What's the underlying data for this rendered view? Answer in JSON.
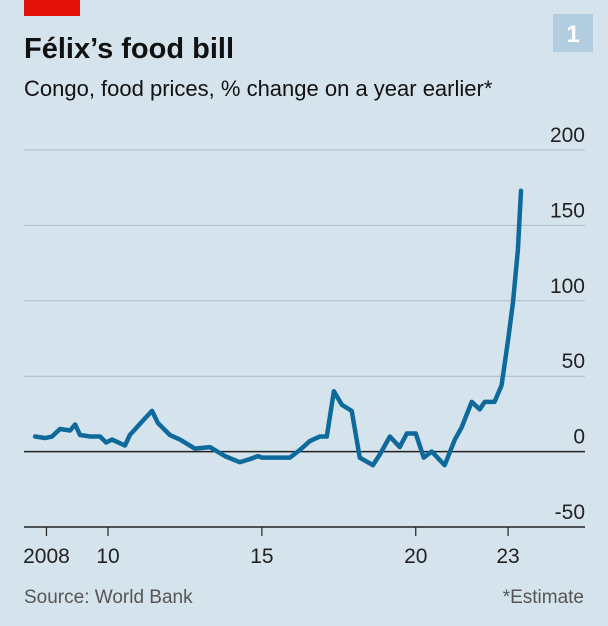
{
  "chart_data": {
    "type": "line",
    "title": "Félix’s food bill",
    "subtitle": "Congo, food prices, % change on a year earlier*",
    "badge": "1",
    "source": "Source: World Bank",
    "note": "*Estimate",
    "x": [
      2007.63,
      2007.95,
      2008.18,
      2008.44,
      2008.77,
      2008.93,
      2009.09,
      2009.42,
      2009.74,
      2009.94,
      2010.13,
      2010.55,
      2010.71,
      2011.2,
      2011.43,
      2011.62,
      2012.01,
      2012.34,
      2012.82,
      2013.31,
      2013.8,
      2014.28,
      2014.61,
      2014.87,
      2015,
      2015.42,
      2015.91,
      2016.23,
      2016.56,
      2016.88,
      2017.11,
      2017.34,
      2017.6,
      2017.92,
      2018.18,
      2018.61,
      2018.83,
      2019.16,
      2019.48,
      2019.71,
      2020,
      2020.26,
      2020.52,
      2020.94,
      2021.27,
      2021.49,
      2021.82,
      2022.08,
      2022.24,
      2022.56,
      2022.79,
      2023,
      2023.16,
      2023.32,
      2023.42
    ],
    "series": [
      {
        "color": "#0f6a9c",
        "values": [
          10,
          9,
          10,
          15,
          14,
          18,
          11,
          10,
          10,
          6,
          8,
          4,
          11,
          22,
          27,
          19,
          11,
          8,
          2,
          3,
          -3,
          -7,
          -5,
          -3,
          -4,
          -4,
          -4,
          1,
          7,
          10,
          10,
          40,
          31,
          27,
          -4,
          -9,
          -2,
          10,
          3,
          12,
          12,
          -4,
          0,
          -9,
          8,
          16,
          33,
          28,
          33,
          33,
          44,
          74,
          99,
          134,
          173
        ]
      }
    ],
    "xlim": [
      2007.27,
      2025.5
    ],
    "xticks": [
      {
        "value": 2008,
        "label": "2008"
      },
      {
        "value": 2010,
        "label": "10"
      },
      {
        "value": 2015,
        "label": "15"
      },
      {
        "value": 2020,
        "label": "20"
      },
      {
        "value": 2023,
        "label": "23"
      }
    ],
    "ylim": [
      -50,
      200
    ],
    "yticks": [
      200,
      150,
      100,
      50,
      0,
      -50
    ],
    "grid": true
  }
}
